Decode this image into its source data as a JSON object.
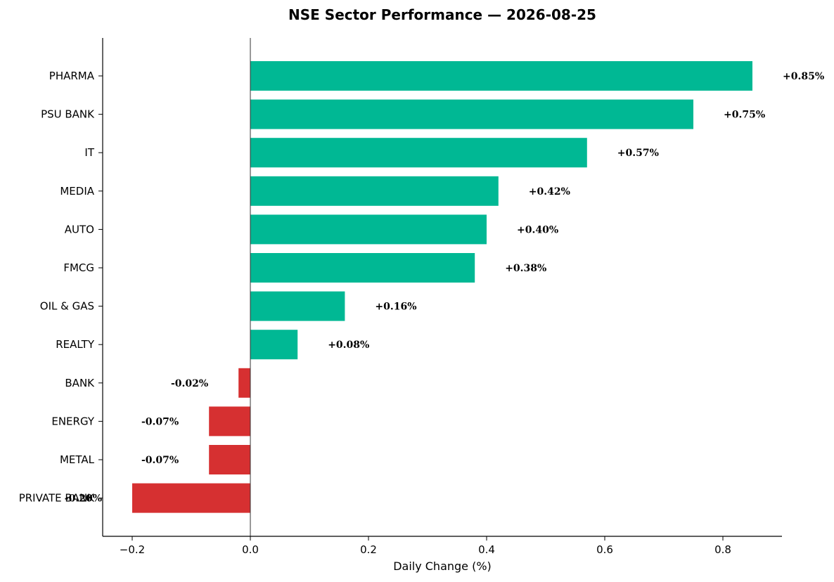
{
  "chart_data": {
    "type": "bar",
    "orientation": "horizontal",
    "title": "NSE Sector Performance — 2026-08-25",
    "xlabel": "Daily Change (%)",
    "ylabel": "",
    "xlim": [
      -0.25,
      0.9
    ],
    "xticks": [
      -0.2,
      0.0,
      0.2,
      0.4,
      0.6,
      0.8
    ],
    "xtick_labels": [
      "−0.2",
      "0.0",
      "0.2",
      "0.4",
      "0.6",
      "0.8"
    ],
    "grid": false,
    "categories": [
      "PHARMA",
      "PSU BANK",
      "IT",
      "MEDIA",
      "AUTO",
      "FMCG",
      "OIL & GAS",
      "REALTY",
      "BANK",
      "ENERGY",
      "METAL",
      "PRIVATE BANK"
    ],
    "values": [
      0.85,
      0.75,
      0.57,
      0.42,
      0.4,
      0.38,
      0.16,
      0.08,
      -0.02,
      -0.07,
      -0.07,
      -0.2
    ],
    "data_labels": [
      "+0.85%",
      "+0.75%",
      "+0.57%",
      "+0.42%",
      "+0.40%",
      "+0.38%",
      "+0.16%",
      "+0.08%",
      "-0.02%",
      "-0.07%",
      "-0.07%",
      "-0.20%"
    ],
    "colors": {
      "positive": "#00b894",
      "negative": "#d63031"
    }
  }
}
